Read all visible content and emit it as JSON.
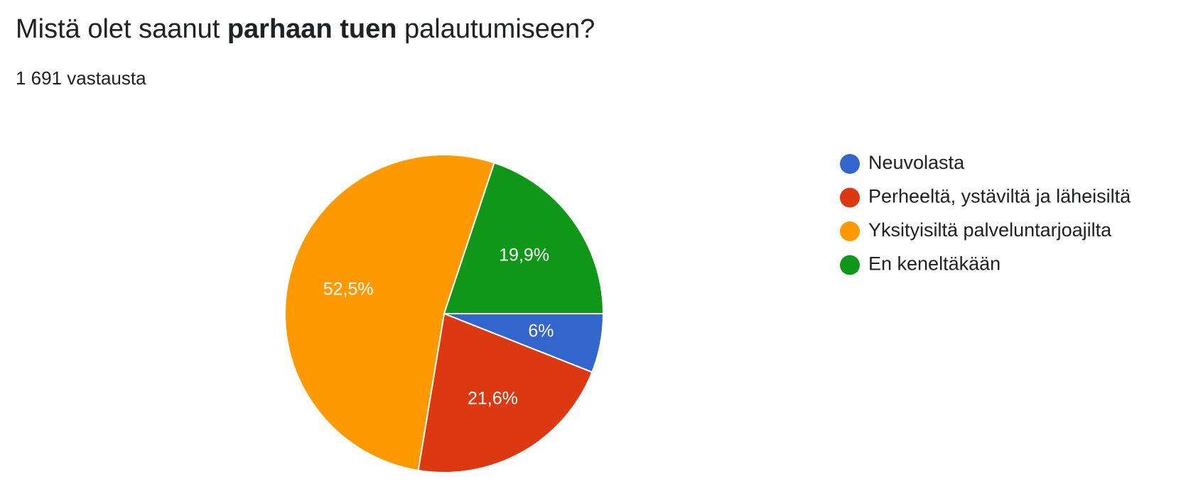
{
  "chart_data": {
    "type": "pie",
    "title": [
      "Mistä olet saanut",
      "parhaan tuen",
      "palautumiseen?"
    ],
    "subtitle": "1 691 vastausta",
    "categories": [
      "Neuvolasta",
      "Perheeltä, ystäviltä ja läheisiltä",
      "Yksityisiltä palveluntarjoajilta",
      "En keneltäkään"
    ],
    "values": [
      6,
      21.6,
      52.5,
      19.9
    ],
    "value_labels": [
      "6%",
      "21,6%",
      "52,5%",
      "19,9%"
    ],
    "colors": [
      "#3366cc",
      "#dc3912",
      "#ff9900",
      "#109618"
    ],
    "legend": "right"
  }
}
